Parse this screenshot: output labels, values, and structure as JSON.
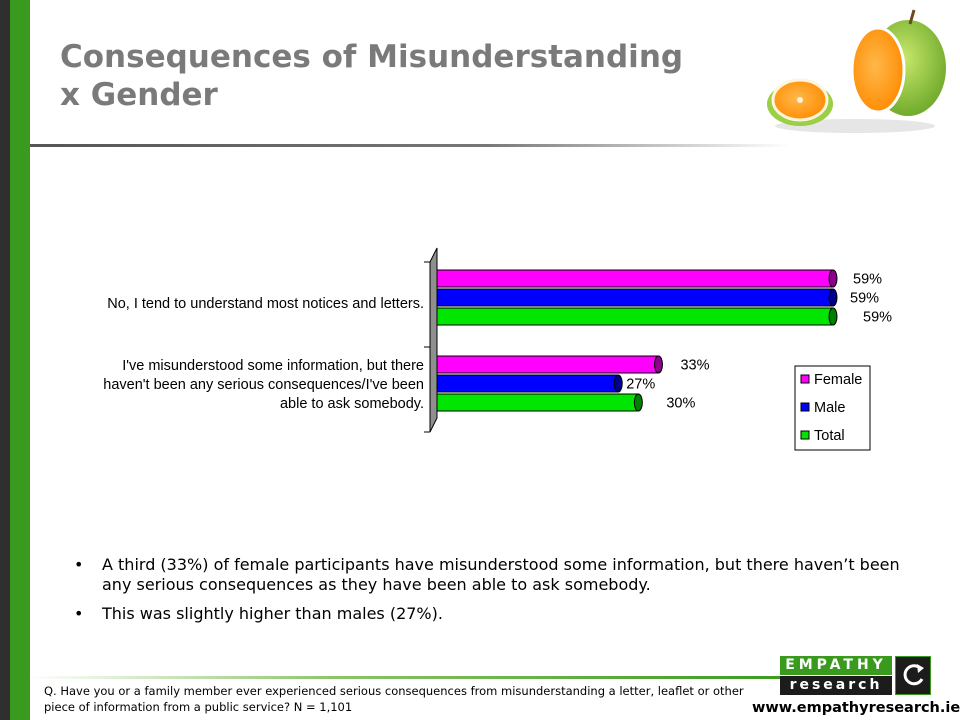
{
  "slide": {
    "title_line1": "Consequences of Misunderstanding",
    "title_line2": "x Gender",
    "bullets": [
      "A third (33%) of female participants have misunderstood some information, but there haven’t been any serious consequences as they have been able to ask somebody.",
      "This was slightly higher than males (27%)."
    ],
    "footnote": "Q. Have you or a family member ever experienced serious consequences from misunderstanding  a letter, leaflet or other piece of information from a public service?    N = 1,101",
    "logo_top": "EMPATHY",
    "logo_bottom": "research",
    "website": "www.empathyresearch.ie"
  },
  "colors": {
    "accent_green": "#3a9a1e",
    "female": "#ff00ff",
    "male": "#0000ff",
    "total": "#00e600"
  },
  "chart_data": {
    "type": "bar",
    "orientation": "horizontal",
    "categories": [
      [
        "No, I tend to understand most notices and letters."
      ],
      [
        "I've misunderstood some information, but there",
        "haven't been any serious consequences/I've been",
        "able to ask somebody."
      ]
    ],
    "series": [
      {
        "name": "Female",
        "values": [
          59,
          33
        ],
        "labels": [
          "59%",
          "33%"
        ],
        "color": "#ff00ff"
      },
      {
        "name": "Male",
        "values": [
          59,
          27
        ],
        "labels": [
          "59%",
          "27%"
        ],
        "color": "#0000ff"
      },
      {
        "name": "Total",
        "values": [
          59,
          30
        ],
        "labels": [
          "59%",
          "30%"
        ],
        "color": "#00e600"
      }
    ],
    "xlim": [
      0,
      59
    ],
    "legend": "right",
    "grid": false
  }
}
